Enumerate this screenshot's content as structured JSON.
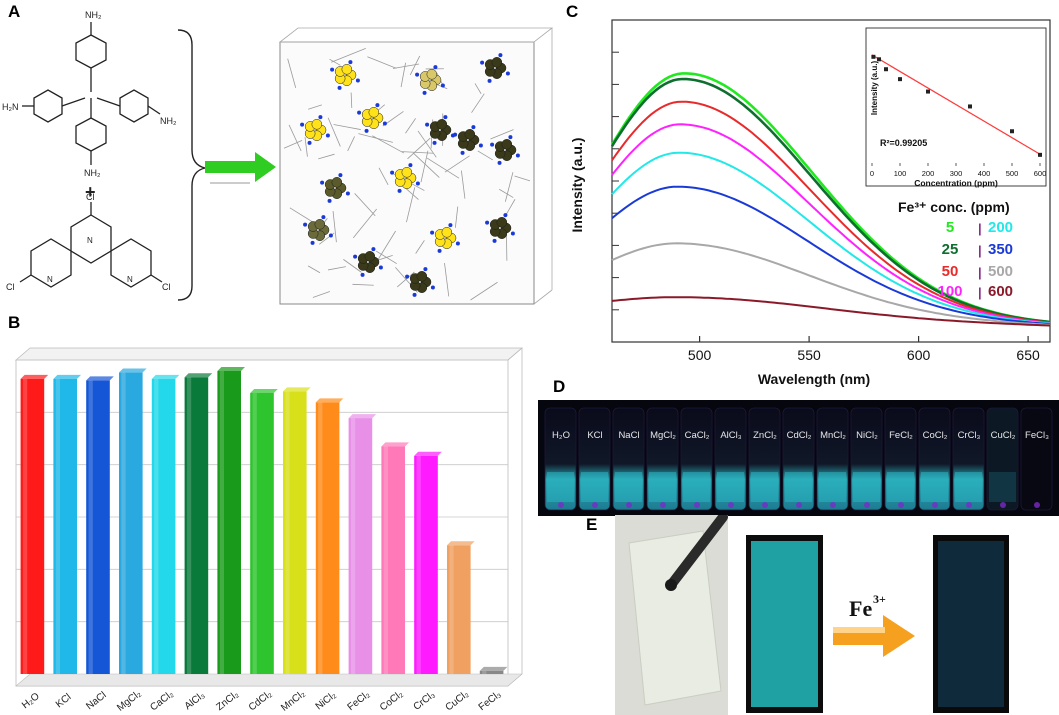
{
  "panels": {
    "a": "A",
    "b": "B",
    "c": "C",
    "d": "D",
    "e": "E"
  },
  "panel_a": {
    "amine_label": "NH₂",
    "amine_left_label": "H₂N",
    "plus": "+",
    "chloro_label": "Cl",
    "ring_n": "N"
  },
  "panel_d": {
    "labels": [
      "H₂O",
      "KCl",
      "NaCl",
      "MgCl₂",
      "CaCl₂",
      "AlCl₃",
      "ZnCl₂",
      "CdCl₂",
      "MnCl₂",
      "NiCl₂",
      "FeCl₂",
      "CoCl₂",
      "CrCl₃",
      "CuCl₂",
      "FeCl₃"
    ]
  },
  "panel_e": {
    "reagent": "Fe",
    "reagent_sup": "3+"
  },
  "chart_data": [
    {
      "id": "B",
      "type": "bar",
      "categories": [
        "H₂O",
        "KCl",
        "NaCl",
        "MgCl₂",
        "CaCl₂",
        "AlCl₃",
        "ZnCl₂",
        "CdCl₂",
        "MnCl₂",
        "NiCl₂",
        "FeCl₂",
        "CoCl₂",
        "CrCl₃",
        "CuCl₂",
        "FeCl₃"
      ],
      "values": [
        94,
        94,
        93.5,
        96,
        94,
        94.5,
        96.5,
        89.5,
        90,
        86.5,
        81.5,
        72.5,
        69.5,
        41,
        1
      ],
      "colors": [
        "#ff1a1a",
        "#1fb8e8",
        "#1456d6",
        "#2aa8e0",
        "#22d8ea",
        "#0a7a3a",
        "#1a9a1a",
        "#2ec42e",
        "#d8e01a",
        "#ff8c1a",
        "#e890e8",
        "#ff78b8",
        "#ff1aff",
        "#f0a060",
        "#888888"
      ],
      "ylim": [
        0,
        100
      ]
    },
    {
      "id": "C",
      "type": "line",
      "xlabel": "Wavelength (nm)",
      "ylabel": "Intensity (a.u.)",
      "xlim": [
        460,
        660
      ],
      "ylim": [
        0,
        100
      ],
      "xticks": [
        500,
        550,
        600,
        650
      ],
      "legend_title": "Fe³⁺ conc. (ppm)",
      "legend_divider": "|",
      "series": [
        {
          "name": "5",
          "color": "#22e822",
          "peak": 88
        },
        {
          "name": "25",
          "color": "#0e6e2e",
          "peak": 86
        },
        {
          "name": "50",
          "color": "#e82a2a",
          "peak": 78
        },
        {
          "name": "100",
          "color": "#ff22ff",
          "peak": 70
        },
        {
          "name": "200",
          "color": "#22e8e8",
          "peak": 60
        },
        {
          "name": "350",
          "color": "#1a3ad8",
          "peak": 48
        },
        {
          "name": "500",
          "color": "#a8a8a8",
          "peak": 28
        },
        {
          "name": "600",
          "color": "#8a1a2a",
          "peak": 9
        }
      ],
      "inset": {
        "type": "scatter",
        "xlabel": "Concentration (ppm)",
        "ylabel": "Intensity (a.u.)",
        "annotation": "R²=0.99205",
        "xlim": [
          0,
          600
        ],
        "xticks": [
          0,
          100,
          200,
          300,
          400,
          500,
          600
        ],
        "x": [
          5,
          25,
          50,
          100,
          200,
          350,
          500,
          600
        ],
        "y": [
          88,
          86,
          78,
          70,
          60,
          48,
          28,
          9
        ]
      }
    }
  ]
}
